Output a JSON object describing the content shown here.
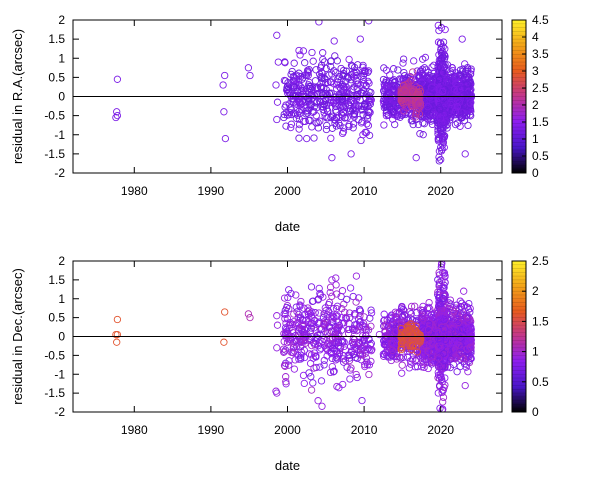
{
  "chart_data": [
    {
      "type": "scatter",
      "xlabel": "date",
      "ylabel": "residual in R.A.(arcsec)",
      "xlim": [
        1972,
        2028
      ],
      "ylim": [
        -2,
        2
      ],
      "x_ticks": [
        1980,
        1990,
        2000,
        2010,
        2020
      ],
      "y_ticks": [
        -2,
        -1.5,
        -1,
        -0.5,
        0,
        0.5,
        1,
        1.5,
        2
      ],
      "x_tick_labels": [
        "1980",
        "1990",
        "2000",
        "2010",
        "2020"
      ],
      "y_tick_labels": [
        "-2",
        "-1.5",
        "-1",
        "-0.5",
        "0",
        "0.5",
        "1",
        "1.5",
        "2"
      ],
      "colorbar": {
        "range": [
          0,
          4.5
        ],
        "ticks": [
          0,
          0.5,
          1,
          1.5,
          2,
          2.5,
          3,
          3.5,
          4,
          4.5
        ],
        "tick_labels": [
          "0",
          "0.5",
          "1",
          "1.5",
          "2",
          "2.5",
          "3",
          "3.5",
          "4",
          "4.5"
        ],
        "colormap": [
          "#000000",
          "#4a16c9",
          "#8d1ef0",
          "#c2368f",
          "#e85b1e",
          "#f3a318",
          "#fff02a"
        ]
      },
      "zero_line": true,
      "grid": false,
      "marker": "open-circle",
      "points": [
        [
          1977.8,
          0.45,
          1.3
        ],
        [
          1977.7,
          -0.4,
          1.3
        ],
        [
          1977.8,
          -0.5,
          1.3
        ],
        [
          1977.6,
          -0.55,
          1.3
        ],
        [
          1991.8,
          0.55,
          1.3
        ],
        [
          1991.6,
          0.3,
          1.3
        ],
        [
          1991.7,
          -0.4,
          1.3
        ],
        [
          1991.9,
          -1.1,
          1.3
        ],
        [
          1994.9,
          0.75,
          1.3
        ],
        [
          1995.1,
          0.55,
          1.3
        ],
        [
          1998.6,
          1.6,
          1.3
        ],
        [
          1998.8,
          0.9,
          1.3
        ],
        [
          1998.5,
          0.3,
          1.3
        ],
        [
          1998.7,
          -0.15,
          1.3
        ],
        [
          1998.6,
          -0.6,
          1.3
        ],
        [
          2004.1,
          1.95,
          1.3
        ],
        [
          2010.6,
          1.98,
          1.3
        ],
        [
          2009.5,
          1.5,
          1.3
        ],
        [
          2006.1,
          1.45,
          1.3
        ],
        [
          2003.2,
          1.15,
          1.3
        ],
        [
          2001.0,
          -0.45,
          1.3
        ],
        [
          2002.5,
          -1.1,
          1.3
        ],
        [
          2005.8,
          -1.6,
          1.3
        ],
        [
          2008.3,
          -1.5,
          1.3
        ],
        [
          2009.6,
          -1.15,
          1.3
        ],
        [
          2016.2,
          -0.25,
          2.2
        ],
        [
          2016.0,
          0.1,
          2.2
        ],
        [
          2015.8,
          -0.1,
          2.0
        ],
        [
          2017.0,
          0.05,
          2.3
        ],
        [
          2017.2,
          -0.2,
          1.9
        ],
        [
          2020.1,
          1.8,
          1.3
        ],
        [
          2020.0,
          -1.65,
          1.3
        ],
        [
          2022.8,
          1.5,
          1.3
        ],
        [
          2023.2,
          -1.5,
          1.3
        ],
        [
          2016.8,
          -1.6,
          1.3
        ]
      ],
      "clusters": [
        {
          "x": [
            1999.5,
            2011.0
          ],
          "sd": 0.45,
          "n": 420
        },
        {
          "x": [
            2012.5,
            2017.5
          ],
          "sd": 0.35,
          "n": 320
        },
        {
          "x": [
            2017.5,
            2024.0
          ],
          "sd": 0.3,
          "n": 1100
        },
        {
          "x": [
            2019.6,
            2020.6
          ],
          "sd": 0.75,
          "n": 260
        },
        {
          "x": [
            2014.8,
            2017.4
          ],
          "sd": 0.18,
          "n": 120,
          "c": 2.2
        }
      ]
    },
    {
      "type": "scatter",
      "xlabel": "date",
      "ylabel": "residual in Dec.(arcsec)",
      "xlim": [
        1972,
        2028
      ],
      "ylim": [
        -2,
        2
      ],
      "x_ticks": [
        1980,
        1990,
        2000,
        2010,
        2020
      ],
      "y_ticks": [
        -2,
        -1.5,
        -1,
        -0.5,
        0,
        0.5,
        1,
        1.5,
        2
      ],
      "x_tick_labels": [
        "1980",
        "1990",
        "2000",
        "2010",
        "2020"
      ],
      "y_tick_labels": [
        "-2",
        "-1.5",
        "-1",
        "-0.5",
        "0",
        "0.5",
        "1",
        "1.5",
        "2"
      ],
      "colorbar": {
        "range": [
          0,
          2.5
        ],
        "ticks": [
          0,
          0.5,
          1,
          1.5,
          2,
          2.5
        ],
        "tick_labels": [
          "0",
          "0.5",
          "1",
          "1.5",
          "2",
          "2.5"
        ],
        "colormap": [
          "#000000",
          "#4a16c9",
          "#8d1ef0",
          "#c2368f",
          "#e85b1e",
          "#f3a318",
          "#fff02a"
        ]
      },
      "zero_line": true,
      "grid": false,
      "marker": "open-circle",
      "points": [
        [
          1977.8,
          0.45,
          1.6
        ],
        [
          1977.6,
          0.05,
          1.6
        ],
        [
          1977.8,
          0.05,
          1.6
        ],
        [
          1977.7,
          -0.15,
          1.6
        ],
        [
          1991.8,
          0.65,
          1.6
        ],
        [
          1991.7,
          -0.15,
          1.6
        ],
        [
          1994.9,
          0.6,
          1.1
        ],
        [
          1995.1,
          0.5,
          1.1
        ],
        [
          1998.6,
          0.55,
          0.9
        ],
        [
          1998.7,
          0.3,
          0.9
        ],
        [
          1998.6,
          -0.3,
          0.9
        ],
        [
          1998.5,
          -1.45,
          0.9
        ],
        [
          1998.6,
          -1.5,
          0.9
        ],
        [
          2005.8,
          1.5,
          0.9
        ],
        [
          2006.3,
          1.55,
          0.9
        ],
        [
          2009.0,
          1.6,
          0.9
        ],
        [
          2004.0,
          -1.7,
          0.9
        ],
        [
          2004.5,
          -1.85,
          0.9
        ],
        [
          2011.0,
          -0.35,
          0.9
        ],
        [
          2012.0,
          0.05,
          0.9
        ],
        [
          2016.1,
          -0.2,
          1.5
        ],
        [
          2015.8,
          0.1,
          1.5
        ],
        [
          2016.6,
          0.0,
          1.5
        ],
        [
          2017.3,
          -0.15,
          1.5
        ],
        [
          2020.1,
          1.9,
          0.9
        ],
        [
          2020.2,
          -1.95,
          0.9
        ],
        [
          2023.0,
          1.2,
          0.9
        ],
        [
          2023.2,
          -1.3,
          0.9
        ]
      ],
      "clusters": [
        {
          "x": [
            1999.5,
            2011.0
          ],
          "sd": 0.55,
          "n": 430
        },
        {
          "x": [
            2012.5,
            2017.5
          ],
          "sd": 0.35,
          "n": 320
        },
        {
          "x": [
            2017.5,
            2024.0
          ],
          "sd": 0.32,
          "n": 1100
        },
        {
          "x": [
            2019.6,
            2020.6
          ],
          "sd": 0.8,
          "n": 260
        },
        {
          "x": [
            2014.8,
            2017.4
          ],
          "sd": 0.16,
          "n": 120,
          "c": 1.5
        }
      ]
    }
  ]
}
